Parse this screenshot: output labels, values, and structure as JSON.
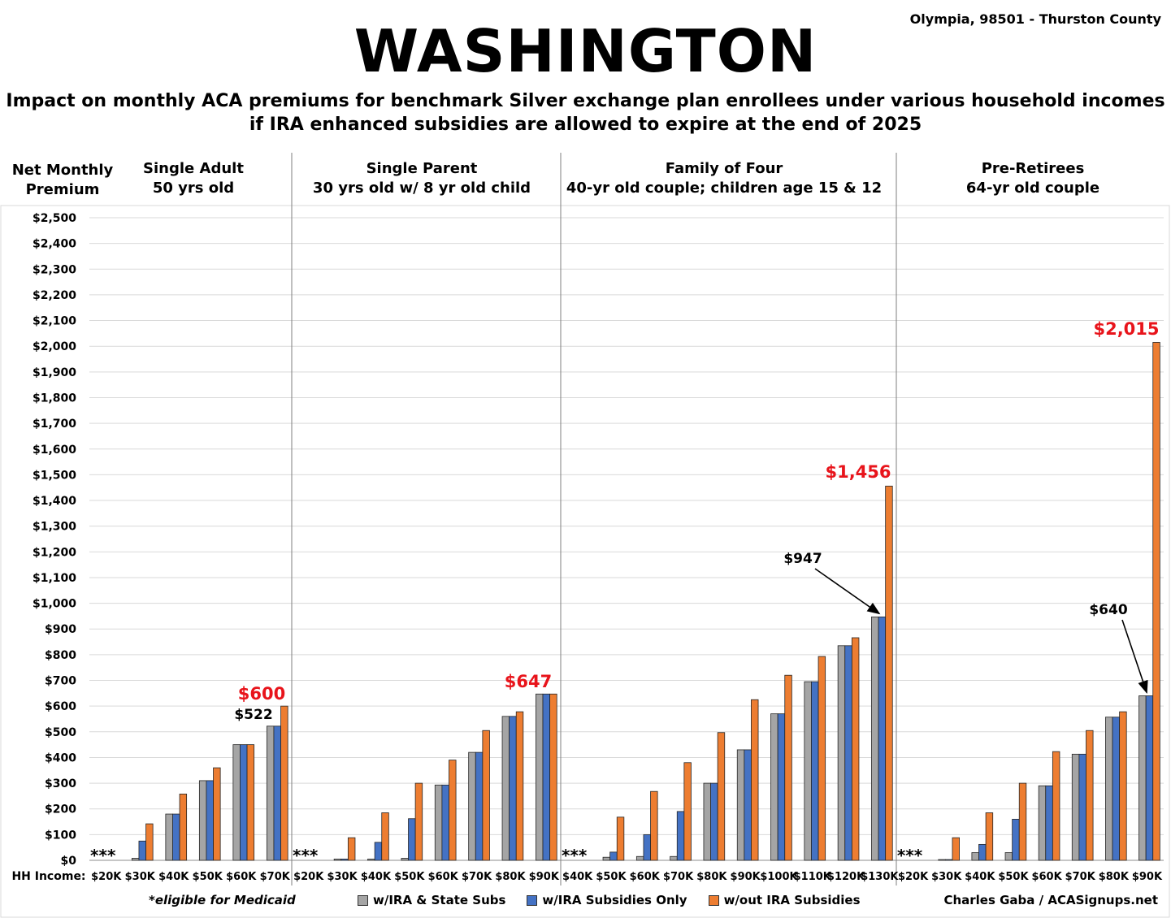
{
  "header": {
    "title": "WASHINGTON",
    "location": "Olympia, 98501 - Thurston County",
    "subtitle_line1": "Impact on monthly ACA premiums for benchmark Silver exchange plan enrollees under various household incomes",
    "subtitle_line2": "if IRA enhanced subsidies are allowed to expire at the end of 2025"
  },
  "y_axis_title_line1": "Net Monthly",
  "y_axis_title_line2": "Premium",
  "x_axis_title": "HH Income:",
  "footer": {
    "medicaid_note": "*eligible for Medicaid",
    "credit": "Charles Gaba / ACASignups.net"
  },
  "colors": {
    "gray": "#a5a5a5",
    "blue": "#4472c4",
    "orange": "#ed7d31",
    "highlight_red": "#e8141b"
  },
  "chart_data": {
    "type": "bar",
    "ylim": [
      0,
      2500
    ],
    "y_ticks": [
      "$0",
      "$100",
      "$200",
      "$300",
      "$400",
      "$500",
      "$600",
      "$700",
      "$800",
      "$900",
      "$1,000",
      "$1,100",
      "$1,200",
      "$1,300",
      "$1,400",
      "$1,500",
      "$1,600",
      "$1,700",
      "$1,800",
      "$1,900",
      "$2,000",
      "$2,100",
      "$2,200",
      "$2,300",
      "$2,400",
      "$2,500"
    ],
    "grid": true,
    "legend": "bottom",
    "series_names": [
      "w/IRA & State Subs",
      "w/IRA Subsidies Only",
      "w/out IRA Subsidies"
    ],
    "medicaid_marker": "***",
    "groups": [
      {
        "title_line1": "Single Adult",
        "title_line2": "50 yrs old",
        "categories": [
          "$20K",
          "$30K",
          "$40K",
          "$50K",
          "$60K",
          "$70K"
        ],
        "series": [
          {
            "name": "w/IRA & State Subs",
            "values": [
              null,
              8,
              180,
              310,
              450,
              522
            ]
          },
          {
            "name": "w/IRA Subsidies Only",
            "values": [
              null,
              75,
              180,
              310,
              450,
              522
            ]
          },
          {
            "name": "w/out IRA Subsidies",
            "values": [
              null,
              142,
              258,
              360,
              450,
              600
            ]
          }
        ],
        "medicaid_index": 0,
        "annotations": [
          {
            "text": "$600",
            "value": 600,
            "color": "red"
          },
          {
            "text": "$522",
            "value": 522,
            "color": "black"
          }
        ]
      },
      {
        "title_line1": "Single Parent",
        "title_line2": "30 yrs old w/ 8 yr old child",
        "categories": [
          "$20K",
          "$30K",
          "$40K",
          "$50K",
          "$60K",
          "$70K",
          "$80K",
          "$90K"
        ],
        "series": [
          {
            "name": "w/IRA & State Subs",
            "values": [
              null,
              5,
              5,
              8,
              293,
              420,
              560,
              647
            ]
          },
          {
            "name": "w/IRA Subsidies Only",
            "values": [
              null,
              5,
              70,
              162,
              293,
              420,
              560,
              647
            ]
          },
          {
            "name": "w/out IRA Subsidies",
            "values": [
              null,
              88,
              185,
              300,
              390,
              505,
              578,
              647
            ]
          }
        ],
        "medicaid_index": 0,
        "annotations": [
          {
            "text": "$647",
            "value": 647,
            "color": "red"
          }
        ]
      },
      {
        "title_line1": "Family of Four",
        "title_line2": "40-yr old couple; children age 15 & 12",
        "categories": [
          "$40K",
          "$50K",
          "$60K",
          "$70K",
          "$80K",
          "$90K",
          "$100K",
          "$110K",
          "$120K",
          "$130K"
        ],
        "series": [
          {
            "name": "w/IRA & State Subs",
            "values": [
              null,
              12,
              15,
              15,
              300,
              430,
              570,
              695,
              835,
              947
            ]
          },
          {
            "name": "w/IRA Subsidies Only",
            "values": [
              null,
              32,
              100,
              190,
              300,
              430,
              570,
              695,
              835,
              947
            ]
          },
          {
            "name": "w/out IRA Subsidies",
            "values": [
              null,
              168,
              268,
              380,
              497,
              625,
              720,
              793,
              866,
              1456
            ]
          }
        ],
        "medicaid_index": 0,
        "annotations": [
          {
            "text": "$1,456",
            "value": 1456,
            "color": "red"
          },
          {
            "text": "$947",
            "value": 947,
            "color": "black"
          }
        ]
      },
      {
        "title_line1": "Pre-Retirees",
        "title_line2": "64-yr old couple",
        "categories": [
          "$20K",
          "$30K",
          "$40K",
          "$50K",
          "$60K",
          "$70K",
          "$80K",
          "$90K"
        ],
        "series": [
          {
            "name": "w/IRA & State Subs",
            "values": [
              null,
              3,
              30,
              30,
              290,
              413,
              557,
              640
            ]
          },
          {
            "name": "w/IRA Subsidies Only",
            "values": [
              null,
              3,
              62,
              160,
              290,
              413,
              557,
              640
            ]
          },
          {
            "name": "w/out IRA Subsidies",
            "values": [
              null,
              88,
              185,
              300,
              423,
              505,
              578,
              2015
            ]
          }
        ],
        "medicaid_index": 0,
        "annotations": [
          {
            "text": "$2,015",
            "value": 2015,
            "color": "red"
          },
          {
            "text": "$640",
            "value": 640,
            "color": "black"
          }
        ]
      }
    ]
  }
}
